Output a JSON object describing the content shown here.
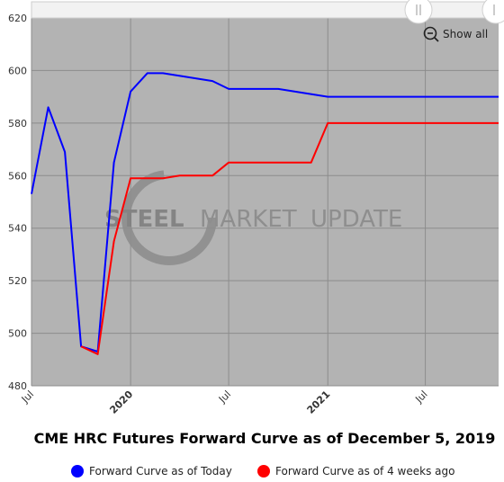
{
  "chart_data": {
    "type": "line",
    "title": "CME HRC Futures Forward Curve as of December 5, 2019",
    "ylim": [
      480,
      620
    ],
    "yticks": [
      480,
      500,
      520,
      540,
      560,
      580,
      600,
      620
    ],
    "xlim": [
      "2019-07-01",
      "2021-11-14"
    ],
    "xticks": [
      {
        "date": "2019-07-01",
        "label": "Jul",
        "major": false
      },
      {
        "date": "2020-01-01",
        "label": "2020",
        "major": true
      },
      {
        "date": "2020-07-01",
        "label": "Jul",
        "major": false
      },
      {
        "date": "2021-01-01",
        "label": "2021",
        "major": true
      },
      {
        "date": "2021-07-01",
        "label": "Jul",
        "major": false
      }
    ],
    "grid": true,
    "legend_position": "bottom",
    "series": [
      {
        "name": "Forward Curve as of Today",
        "color": "#0000ff",
        "points": [
          {
            "x": "2019-07-01",
            "y": 553
          },
          {
            "x": "2019-08-01",
            "y": 586
          },
          {
            "x": "2019-09-01",
            "y": 569
          },
          {
            "x": "2019-10-01",
            "y": 495
          },
          {
            "x": "2019-11-01",
            "y": 493
          },
          {
            "x": "2019-12-01",
            "y": 565
          },
          {
            "x": "2020-01-01",
            "y": 592
          },
          {
            "x": "2020-02-01",
            "y": 599
          },
          {
            "x": "2020-03-01",
            "y": 599
          },
          {
            "x": "2020-06-01",
            "y": 596
          },
          {
            "x": "2020-07-01",
            "y": 593
          },
          {
            "x": "2020-10-01",
            "y": 593
          },
          {
            "x": "2021-01-01",
            "y": 590
          },
          {
            "x": "2021-11-14",
            "y": 590
          }
        ]
      },
      {
        "name": "Forward Curve as of 4 weeks ago",
        "color": "#ff0000",
        "points": [
          {
            "x": "2019-10-01",
            "y": 495
          },
          {
            "x": "2019-11-01",
            "y": 492
          },
          {
            "x": "2019-12-01",
            "y": 535
          },
          {
            "x": "2020-01-01",
            "y": 559
          },
          {
            "x": "2020-03-01",
            "y": 559
          },
          {
            "x": "2020-04-01",
            "y": 560
          },
          {
            "x": "2020-06-01",
            "y": 560
          },
          {
            "x": "2020-07-01",
            "y": 565
          },
          {
            "x": "2020-12-01",
            "y": 565
          },
          {
            "x": "2021-01-01",
            "y": 580
          },
          {
            "x": "2021-11-14",
            "y": 580
          }
        ]
      }
    ]
  },
  "watermark": {
    "word1": "STEEL",
    "word2": "MARKET",
    "word3": "UPDATE"
  },
  "controls": {
    "show_all_label": "Show all",
    "zoom_icon": "zoom-out-icon",
    "scroll_handle_icon": "scroll-handle-icon"
  },
  "colors": {
    "plot_background": "#b3b3b3",
    "grid": "#8c8c8c"
  }
}
